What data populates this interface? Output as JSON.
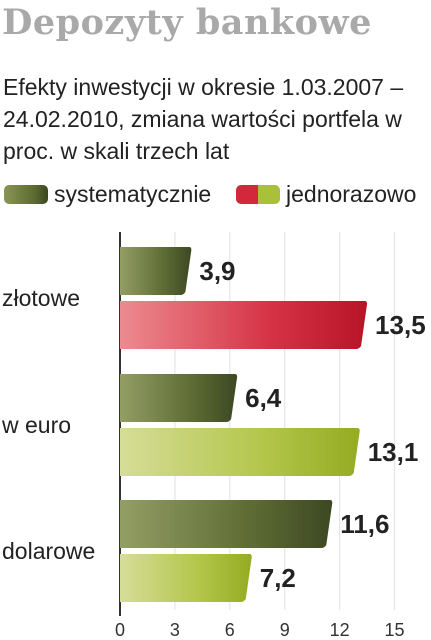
{
  "chart_data": {
    "type": "bar",
    "orientation": "horizontal",
    "title": "Depozyty bankowe",
    "subtitle": "Efekty inwestycji w okresie 1.03.2007 – 24.02.2010, zmiana wartości portfela w proc. w skali trzech lat",
    "categories": [
      "złotowe",
      "w euro",
      "dolarowe"
    ],
    "series": [
      {
        "name": "systematycznie",
        "values": [
          3.9,
          6.4,
          11.6
        ],
        "value_labels": [
          "3,9",
          "6,4",
          "11,6"
        ]
      },
      {
        "name": "jednorazowo",
        "values": [
          13.5,
          13.1,
          7.2
        ],
        "value_labels": [
          "13,5",
          "13,1",
          "7,2"
        ]
      }
    ],
    "xlim": [
      0,
      15
    ],
    "xticks": [
      0,
      3,
      6,
      9,
      12,
      15
    ],
    "xtick_labels": [
      "0",
      "3",
      "6",
      "9",
      "12",
      "15"
    ],
    "grid": true,
    "legend_position": "top",
    "highlighted_bar": {
      "category": "złotowe",
      "series": "jednorazowo"
    }
  },
  "colors": {
    "title": "#a9a9a9",
    "systematycznie": "#5b6a31",
    "jednorazowo": "#a9c03a",
    "highlight": "#d3283b",
    "grid": "#e6e6e6",
    "axis": "#333333"
  }
}
